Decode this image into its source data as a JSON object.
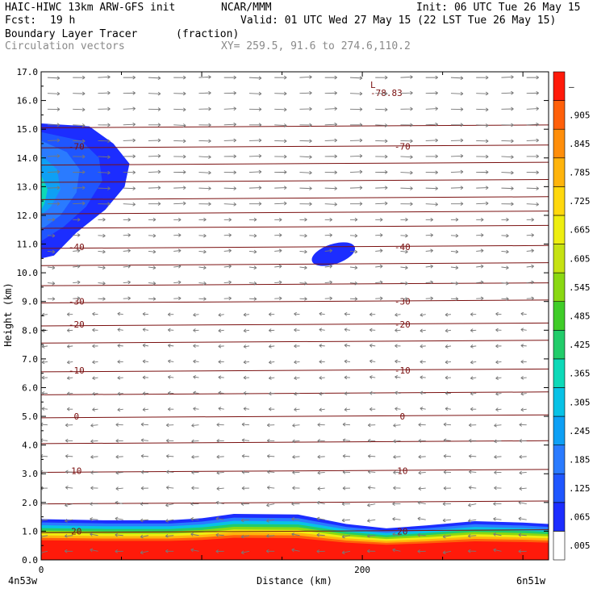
{
  "header": {
    "model": "HAIC-HIWC 13km ARW-GFS init",
    "org": "NCAR/MMM",
    "init": "Init: 06 UTC Tue 26 May 15",
    "fcst_label": "Fcst:",
    "fcst_value": "19 h",
    "valid": "Valid: 01 UTC Wed 27 May 15 (22 LST Tue 26 May 15)",
    "field": "Boundary Layer Tracer",
    "field_units": "(fraction)",
    "vectors": "Circulation vectors",
    "xy": "XY= 259.5, 91.6 to 274.6,110.2"
  },
  "chart_data": {
    "type": "heatmap",
    "title": "Boundary Layer Tracer (fraction)",
    "xlabel": "Distance (km)",
    "ylabel": "Height (km)",
    "xlim": [
      0,
      316
    ],
    "ylim": [
      0,
      17
    ],
    "x_tick_values": [
      0,
      200
    ],
    "x_tick_labels": [
      "0",
      "200"
    ],
    "x_end_labels": [
      "4n53w",
      "6n51w"
    ],
    "y_tick_values": [
      0,
      1,
      2,
      3,
      4,
      5,
      6,
      7,
      8,
      9,
      10,
      11,
      12,
      13,
      14,
      15,
      16,
      17
    ],
    "y_tick_labels": [
      "0.0",
      "1.0",
      "2.0",
      "3.0",
      "4.0",
      "5.0",
      "6.0",
      "7.0",
      "8.0",
      "9.0",
      "10.0",
      "11.0",
      "12.0",
      "13.0",
      "14.0",
      "15.0",
      "16.0",
      "17.0"
    ],
    "colorbar_labels": [
      ".005",
      ".065",
      ".125",
      ".185",
      ".245",
      ".305",
      ".365",
      ".425",
      ".485",
      ".545",
      ".605",
      ".665",
      ".725",
      ".785",
      ".845",
      ".905",
      "–"
    ],
    "colorbar_colors": [
      "#ffffff",
      "#1c2dff",
      "#1f56ff",
      "#2a7bff",
      "#0ea0f5",
      "#08c2e6",
      "#0dd9b8",
      "#22cc6a",
      "#3fcc28",
      "#8ad812",
      "#c6e212",
      "#eeee10",
      "#ffd80e",
      "#ffb40c",
      "#ff8e0a",
      "#ff600a",
      "#ff1a0a"
    ],
    "temperature_contours": [
      {
        "value": -70,
        "label": "-70",
        "height_km": 14.4
      },
      {
        "value": -40,
        "label": "-40",
        "height_km": 10.9
      },
      {
        "value": -30,
        "label": "-30",
        "height_km": 9.0
      },
      {
        "value": -20,
        "label": "-20",
        "height_km": 8.2
      },
      {
        "value": -10,
        "label": "-10",
        "height_km": 6.6
      },
      {
        "value": 0,
        "label": "0",
        "height_km": 5.0
      },
      {
        "value": 10,
        "label": "10",
        "height_km": 3.1
      },
      {
        "value": 20,
        "label": "20",
        "height_km": 1.0
      }
    ],
    "extra_contour_heights_km": [
      15.1,
      13.8,
      13.2,
      12.6,
      12.1,
      11.6,
      10.3,
      9.6,
      7.6,
      5.8,
      4.1,
      2.0
    ],
    "min_label": {
      "text": "-78.83",
      "marker": "L",
      "x_km": 208,
      "height_km": 16.5
    },
    "low_cloud_features": [
      {
        "name": "upper-left plume",
        "x_km": [
          0,
          55
        ],
        "height_km": [
          10.5,
          15.2
        ],
        "max_value": 0.365
      },
      {
        "name": "mid-level blob",
        "x_km": [
          168,
          196
        ],
        "height_km": [
          10.3,
          11.0
        ],
        "max_value": 0.065
      },
      {
        "name": "boundary layer",
        "x_km": [
          0,
          316
        ],
        "height_km": [
          0,
          1.5
        ],
        "max_value": 0.905
      }
    ]
  }
}
